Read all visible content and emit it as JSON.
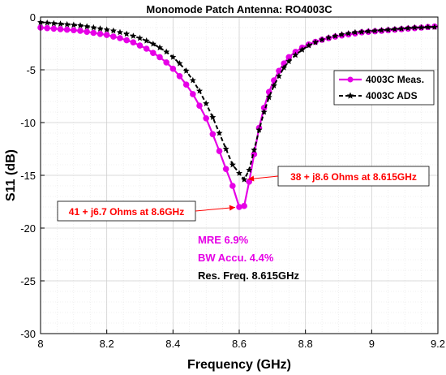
{
  "chart_data": {
    "type": "line",
    "title": "Monomode Patch Antenna: RO4003C",
    "xlabel": "Frequency (GHz)",
    "ylabel": "S11 (dB)",
    "xlim": [
      8,
      9.2
    ],
    "ylim": [
      -30,
      0
    ],
    "xticks": [
      8,
      8.2,
      8.4,
      8.6,
      8.8,
      9,
      9.2
    ],
    "xtick_labels": [
      "8",
      "8.2",
      "8.4",
      "8.6",
      "8.8",
      "9",
      "9.2"
    ],
    "yticks": [
      0,
      -5,
      -10,
      -15,
      -20,
      -25,
      -30
    ],
    "ytick_labels": [
      "0",
      "-5",
      "-10",
      "-15",
      "-20",
      "-25",
      "-30"
    ],
    "grid": true,
    "minor_grid": true,
    "legend_position": "upper-right",
    "series": [
      {
        "name": "4003C Meas.",
        "color": "#e600e6",
        "line_style": "solid",
        "marker": "circle",
        "x": [
          8.0,
          8.02,
          8.04,
          8.06,
          8.08,
          8.1,
          8.12,
          8.14,
          8.16,
          8.18,
          8.2,
          8.22,
          8.24,
          8.26,
          8.28,
          8.3,
          8.32,
          8.34,
          8.36,
          8.38,
          8.4,
          8.42,
          8.44,
          8.46,
          8.48,
          8.5,
          8.52,
          8.54,
          8.56,
          8.58,
          8.6,
          8.615,
          8.63,
          8.645,
          8.66,
          8.675,
          8.69,
          8.705,
          8.72,
          8.735,
          8.75,
          8.77,
          8.79,
          8.81,
          8.83,
          8.85,
          8.87,
          8.89,
          8.91,
          8.93,
          8.95,
          8.97,
          8.99,
          9.01,
          9.03,
          9.05,
          9.07,
          9.09,
          9.11,
          9.13,
          9.15,
          9.17,
          9.19
        ],
        "y": [
          -1.0,
          -1.05,
          -1.1,
          -1.15,
          -1.2,
          -1.25,
          -1.3,
          -1.4,
          -1.5,
          -1.6,
          -1.7,
          -1.85,
          -2.0,
          -2.2,
          -2.4,
          -2.7,
          -3.0,
          -3.4,
          -3.8,
          -4.3,
          -4.9,
          -5.6,
          -6.4,
          -7.3,
          -8.4,
          -9.6,
          -11.1,
          -12.7,
          -14.4,
          -16.0,
          -18.0,
          -17.9,
          -15.6,
          -13.0,
          -10.5,
          -8.6,
          -7.1,
          -6.0,
          -5.1,
          -4.4,
          -3.8,
          -3.3,
          -2.9,
          -2.6,
          -2.35,
          -2.15,
          -2.0,
          -1.85,
          -1.75,
          -1.65,
          -1.55,
          -1.45,
          -1.4,
          -1.35,
          -1.3,
          -1.25,
          -1.2,
          -1.15,
          -1.1,
          -1.05,
          -1.0,
          -0.95,
          -0.9
        ]
      },
      {
        "name": "4003C ADS",
        "color": "#000000",
        "line_style": "dashed",
        "marker": "star",
        "x": [
          8.0,
          8.02,
          8.04,
          8.06,
          8.08,
          8.1,
          8.12,
          8.14,
          8.16,
          8.18,
          8.2,
          8.22,
          8.24,
          8.26,
          8.28,
          8.3,
          8.32,
          8.34,
          8.36,
          8.38,
          8.4,
          8.42,
          8.44,
          8.46,
          8.48,
          8.5,
          8.52,
          8.54,
          8.56,
          8.58,
          8.6,
          8.615,
          8.63,
          8.645,
          8.66,
          8.675,
          8.69,
          8.705,
          8.72,
          8.735,
          8.75,
          8.77,
          8.79,
          8.81,
          8.83,
          8.85,
          8.87,
          8.89,
          8.91,
          8.93,
          8.95,
          8.97,
          8.99,
          9.01,
          9.03,
          9.05,
          9.07,
          9.09,
          9.11,
          9.13,
          9.15,
          9.17,
          9.19
        ],
        "y": [
          -0.5,
          -0.55,
          -0.6,
          -0.65,
          -0.7,
          -0.75,
          -0.8,
          -0.9,
          -1.0,
          -1.1,
          -1.2,
          -1.3,
          -1.45,
          -1.6,
          -1.8,
          -2.0,
          -2.25,
          -2.55,
          -2.9,
          -3.3,
          -3.8,
          -4.4,
          -5.1,
          -6.0,
          -7.0,
          -8.2,
          -9.5,
          -11.0,
          -12.5,
          -14.0,
          -14.8,
          -15.4,
          -14.5,
          -12.6,
          -10.7,
          -9.0,
          -7.6,
          -6.5,
          -5.6,
          -4.8,
          -4.2,
          -3.6,
          -3.1,
          -2.7,
          -2.4,
          -2.15,
          -1.95,
          -1.8,
          -1.65,
          -1.55,
          -1.45,
          -1.4,
          -1.35,
          -1.3,
          -1.25,
          -1.2,
          -1.15,
          -1.1,
          -1.05,
          -1.0,
          -1.0,
          -0.95,
          -0.95
        ]
      }
    ],
    "annotations": [
      {
        "text": "41 + j6.7 Ohms at 8.6GHz",
        "color": "#ff0000",
        "target_x": 8.6,
        "target_y": -18.0
      },
      {
        "text": "38 + j8.6 Ohms at 8.615GHz",
        "color": "#ff0000",
        "target_x": 8.615,
        "target_y": -15.4
      }
    ],
    "metrics": [
      {
        "text": "MRE 6.9%",
        "color": "#e600e6"
      },
      {
        "text": "BW Accu. 4.4%",
        "color": "#e600e6"
      },
      {
        "text": "Res. Freq. 8.615GHz",
        "color": "#000000"
      }
    ]
  }
}
